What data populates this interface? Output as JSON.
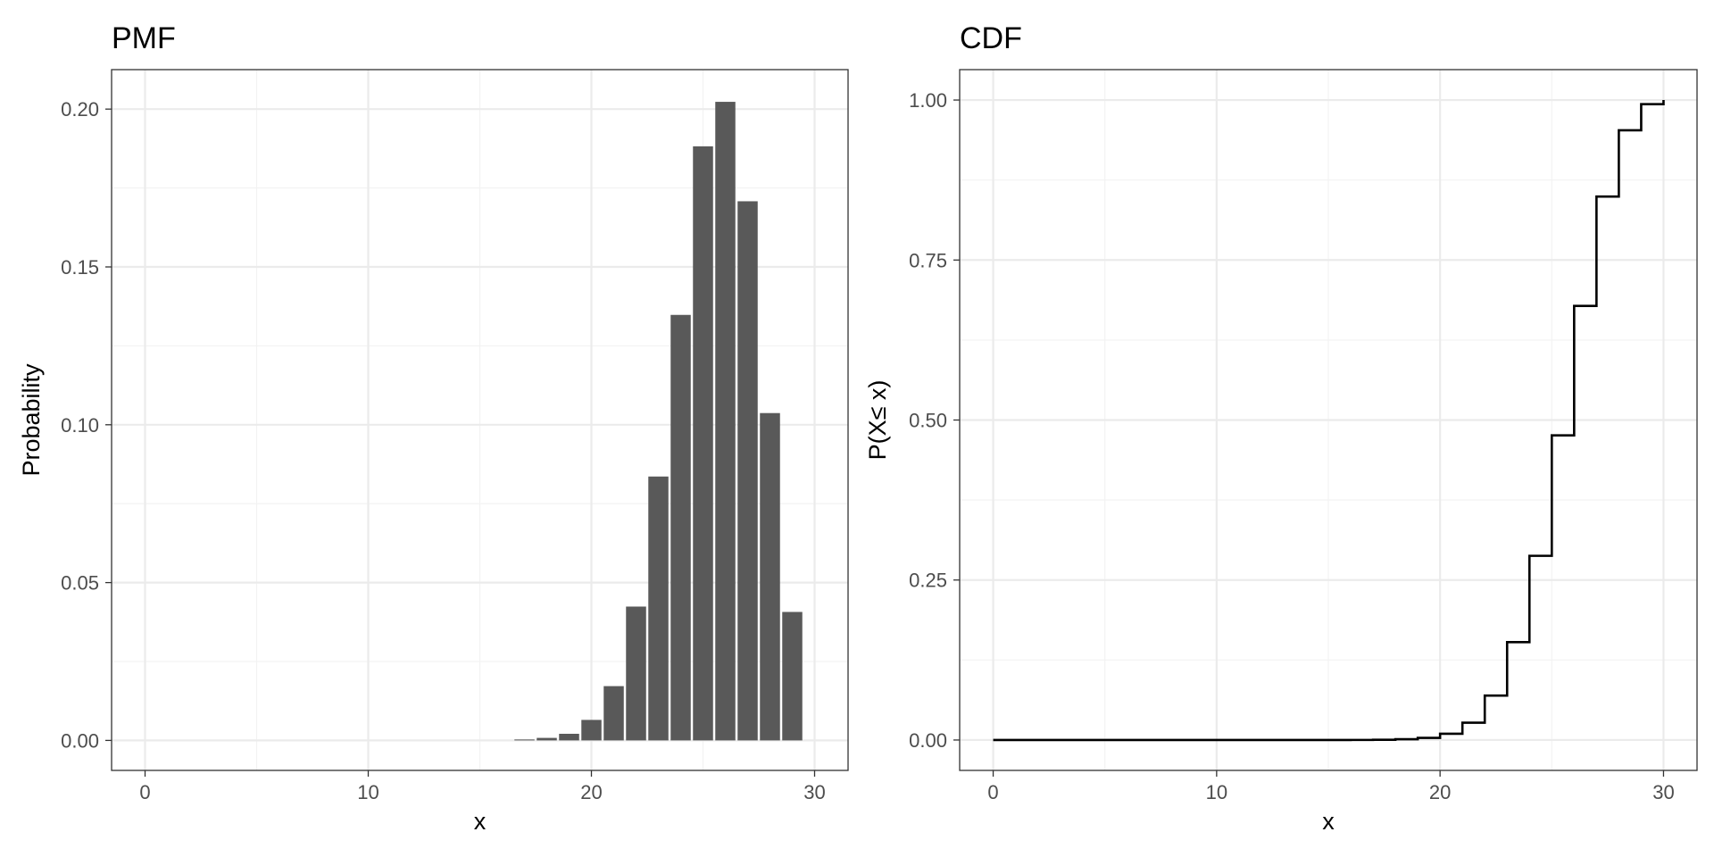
{
  "chart_data": [
    {
      "type": "bar",
      "title": "PMF",
      "xlabel": "x",
      "ylabel": "Probability",
      "xlim": [
        -1.5,
        31.5
      ],
      "ylim": [
        -0.0095,
        0.2125
      ],
      "x_ticks": [
        0,
        10,
        20,
        30
      ],
      "x_tick_labels": [
        "0",
        "10",
        "20",
        "30"
      ],
      "y_ticks": [
        0,
        0.05,
        0.1,
        0.15,
        0.2
      ],
      "y_tick_labels": [
        "0.00",
        "0.05",
        "0.10",
        "0.15",
        "0.20"
      ],
      "grid": true,
      "bar_color": "#595959",
      "x": [
        17,
        18,
        19,
        20,
        21,
        22,
        23,
        24,
        25,
        26,
        27,
        28,
        29
      ],
      "values": [
        0.0003,
        0.0008,
        0.0021,
        0.0065,
        0.0172,
        0.0424,
        0.0836,
        0.1348,
        0.1882,
        0.2023,
        0.1708,
        0.1037,
        0.0407
      ]
    },
    {
      "type": "line",
      "step": true,
      "title": "CDF",
      "xlabel": "x",
      "ylabel": "P(X≤ x)",
      "xlim": [
        -1.5,
        31.5
      ],
      "ylim": [
        -0.0475,
        1.0475
      ],
      "x_ticks": [
        0,
        10,
        20,
        30
      ],
      "x_tick_labels": [
        "0",
        "10",
        "20",
        "30"
      ],
      "y_ticks": [
        0,
        0.25,
        0.5,
        0.75,
        1
      ],
      "y_tick_labels": [
        "0.00",
        "0.25",
        "0.50",
        "0.75",
        "1.00"
      ],
      "grid": true,
      "line_color": "#000000",
      "x": [
        0,
        1,
        2,
        3,
        4,
        5,
        6,
        7,
        8,
        9,
        10,
        11,
        12,
        13,
        14,
        15,
        16,
        17,
        18,
        19,
        20,
        21,
        22,
        23,
        24,
        25,
        26,
        27,
        28,
        29,
        30
      ],
      "values": [
        0,
        0,
        0,
        0,
        0,
        0,
        0,
        0,
        0,
        0,
        0,
        0,
        0,
        0,
        0,
        0,
        0.0001,
        0.0004,
        0.0012,
        0.0033,
        0.0098,
        0.027,
        0.0694,
        0.153,
        0.2878,
        0.476,
        0.6783,
        0.8491,
        0.9528,
        0.9935,
        1.0
      ]
    }
  ]
}
